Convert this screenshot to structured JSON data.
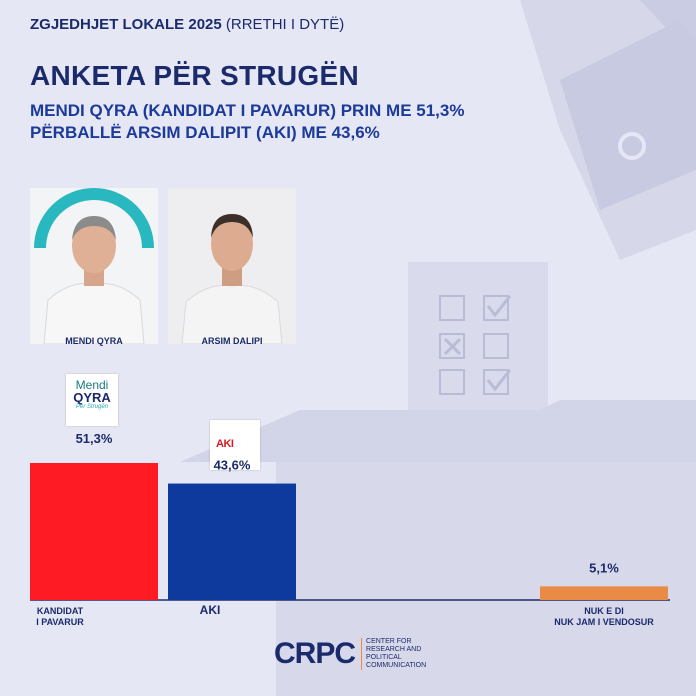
{
  "header": {
    "kicker_bold": "ZGJEDHJET LOKALE 2025",
    "kicker_light": "(RRETHI I DYTË)",
    "title": "ANKETA PËR STRUGËN",
    "subtitle_line1": "MENDI QYRA (KANDIDAT I PAVARUR) PRIN ME 51,3%",
    "subtitle_line2": "PËRBALLË ARSIM DALIPIT (AKI) ME 43,6%"
  },
  "candidates": [
    {
      "name": "MENDI QYRA"
    },
    {
      "name": "ARSIM DALIPI"
    }
  ],
  "logos": {
    "qyra_line1": "Mendi",
    "qyra_line2": "QYRA",
    "qyra_line3": "Për Strugën",
    "aki": "AKI"
  },
  "chart_data": {
    "type": "bar",
    "categories": [
      "KANDIDAT I PAVARUR",
      "AKI",
      "NUK E DI NUK JAM I VENDOSUR"
    ],
    "category_lines": [
      [
        "KANDIDAT",
        "I PAVARUR"
      ],
      [
        "AKI"
      ],
      [
        "NUK E DI",
        "NUK JAM I VENDOSUR"
      ]
    ],
    "values": [
      51.3,
      43.6,
      5.1
    ],
    "value_labels": [
      "51,3%",
      "43,6%",
      "5,1%"
    ],
    "colors": [
      "#fe1b24",
      "#0d3a9c",
      "#e98a45"
    ],
    "ylim": [
      0,
      51.3
    ]
  },
  "footer": {
    "logo": "CRPC",
    "text": "CENTER FOR RESEARCH AND POLITICAL COMMUNICATION"
  }
}
